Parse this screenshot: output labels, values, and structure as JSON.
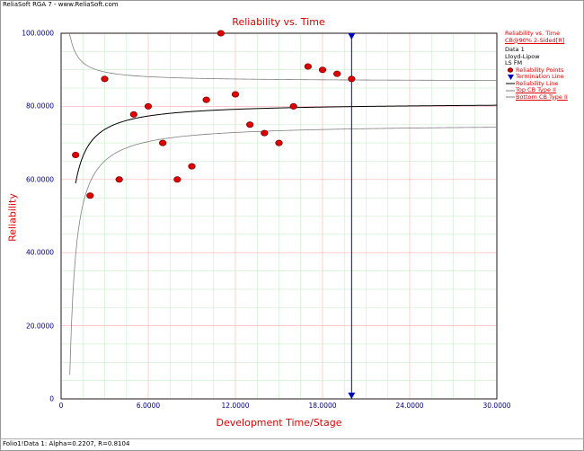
{
  "header": {
    "text": "ReliaSoft RGA 7 - www.ReliaSoft.com"
  },
  "footer": {
    "text": "Folio1!Data 1: Alpha=0.2207, R=0.8104"
  },
  "legend": {
    "title": "Reliability vs. Time",
    "cb": "CB@90% 2-Sided[R]",
    "data_name": "Data 1",
    "method1": "Lloyd-Lipow",
    "method2": "LS FM",
    "items": [
      {
        "label": "Reliability Points",
        "symbol": "dot",
        "color": "#e00000"
      },
      {
        "label": "Termination Line",
        "symbol": "triangle",
        "color": "#0000c0"
      },
      {
        "label": "Reliability Line",
        "symbol": "line",
        "color": "#000000"
      },
      {
        "label": "Top CB Type II",
        "symbol": "line",
        "color": "#808080"
      },
      {
        "label": "Bottom CB Type II",
        "symbol": "line",
        "color": "#808080"
      }
    ]
  },
  "chart_data": {
    "type": "scatter",
    "title": "Reliability vs. Time",
    "xlabel": "Development Time/Stage",
    "ylabel": "Reliability",
    "xlim": [
      0,
      30
    ],
    "ylim": [
      0,
      100
    ],
    "xticks": [
      "0",
      "6.0000",
      "12.0000",
      "18.0000",
      "24.0000",
      "30.0000"
    ],
    "yticks": [
      "0",
      "20.0000",
      "40.0000",
      "60.0000",
      "80.0000",
      "100.0000"
    ],
    "grid": true,
    "legend_position": "right",
    "termination_x": 20,
    "points": {
      "name": "Reliability Points",
      "x": [
        1,
        2,
        3,
        4,
        5,
        6,
        7,
        8,
        9,
        10,
        11,
        12,
        13,
        14,
        15,
        16,
        17,
        18,
        19,
        20
      ],
      "y": [
        66.7,
        55.6,
        87.5,
        60.0,
        77.8,
        80.0,
        70.0,
        60.0,
        63.6,
        81.8,
        100.0,
        83.3,
        75.0,
        72.7,
        70.0,
        80.0,
        90.9,
        90.0,
        88.9,
        87.5
      ]
    },
    "model": {
      "name": "Reliability Line",
      "R_inf": 81.04,
      "alpha": 22.07
    },
    "cb_upper_offset": 5.8,
    "cb_lower_offset": 5.8,
    "colors": {
      "points": "#e00000",
      "termination": "#0000c0",
      "reliability_line": "#000000",
      "cb_lines": "#808080",
      "axis_text": "#000080",
      "title": "#e00000"
    }
  }
}
